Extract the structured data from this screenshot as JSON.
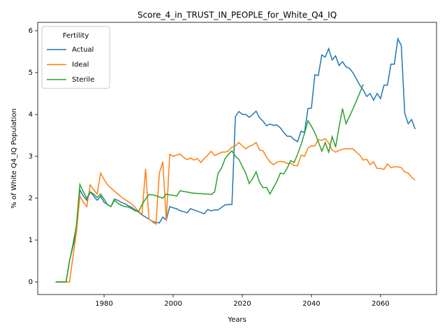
{
  "chart_data": {
    "type": "line",
    "title": "Score_4_in_TRUST_IN_PEOPLE_for_White_Q4_IQ",
    "x_label": "Years",
    "y_label": "% of White Q4_IQ Population",
    "legend_title": "Fertility",
    "legend_position": "upper left",
    "x": [
      1966,
      1967,
      1968,
      1969,
      1970,
      1971,
      1972,
      1973,
      1974,
      1975,
      1976,
      1977,
      1978,
      1979,
      1980,
      1981,
      1982,
      1983,
      1984,
      1985,
      1986,
      1987,
      1988,
      1989,
      1990,
      1991,
      1992,
      1993,
      1994,
      1995,
      1996,
      1997,
      1998,
      1999,
      2000,
      2001,
      2002,
      2003,
      2004,
      2005,
      2006,
      2007,
      2008,
      2009,
      2010,
      2011,
      2012,
      2013,
      2014,
      2015,
      2016,
      2017,
      2018,
      2019,
      2020,
      2021,
      2022,
      2023,
      2024,
      2025,
      2026,
      2027,
      2028,
      2029,
      2030,
      2031,
      2032,
      2033,
      2034,
      2035,
      2036,
      2037,
      2038,
      2039,
      2040,
      2041,
      2042,
      2043,
      2044,
      2045,
      2046,
      2047,
      2048,
      2049,
      2050,
      2051,
      2052,
      2053,
      2054,
      2055,
      2056,
      2057,
      2058,
      2059,
      2060,
      2061,
      2062,
      2063,
      2064,
      2065,
      2066,
      2067,
      2068,
      2069,
      2070
    ],
    "series": [
      {
        "name": "Actual",
        "color": "#1f77b4",
        "values": [
          0,
          0,
          0,
          0,
          0.5,
          0.85,
          1.2,
          2.2,
          2.05,
          1.95,
          2.15,
          2.05,
          1.95,
          2.05,
          1.9,
          1.85,
          1.8,
          1.98,
          1.95,
          1.9,
          1.87,
          1.82,
          1.78,
          1.72,
          1.67,
          1.6,
          1.55,
          1.5,
          1.45,
          1.42,
          1.41,
          1.55,
          1.48,
          1.8,
          1.77,
          1.75,
          1.7,
          1.68,
          1.65,
          1.75,
          1.72,
          1.69,
          1.66,
          1.63,
          1.73,
          1.7,
          1.72,
          1.72,
          1.78,
          1.84,
          1.85,
          1.85,
          3.95,
          4.07,
          4.0,
          4.0,
          3.93,
          4.0,
          4.08,
          3.92,
          3.84,
          3.73,
          3.77,
          3.74,
          3.75,
          3.68,
          3.57,
          3.48,
          3.48,
          3.4,
          3.35,
          3.6,
          3.57,
          4.14,
          4.15,
          4.95,
          4.93,
          5.42,
          5.37,
          5.57,
          5.3,
          5.4,
          5.17,
          5.26,
          5.14,
          5.1,
          5.0,
          4.85,
          4.7,
          4.58,
          4.43,
          4.5,
          4.34,
          4.5,
          4.38,
          4.7,
          4.7,
          5.2,
          5.2,
          5.81,
          5.65,
          4.03,
          3.78,
          3.88,
          3.65
        ]
      },
      {
        "name": "Ideal",
        "color": "#ff7f0e",
        "values": [
          0,
          0,
          0,
          0,
          0,
          0.6,
          1.2,
          2.05,
          1.9,
          1.8,
          2.32,
          2.2,
          2.1,
          2.6,
          2.45,
          2.32,
          2.24,
          2.17,
          2.1,
          2.03,
          1.97,
          1.92,
          1.86,
          1.78,
          1.68,
          1.62,
          2.7,
          1.5,
          1.44,
          1.38,
          2.6,
          2.87,
          1.47,
          3.05,
          3.0,
          3.03,
          3.05,
          2.98,
          2.92,
          2.96,
          2.91,
          2.95,
          2.85,
          2.95,
          3.03,
          3.12,
          3.02,
          3.06,
          3.1,
          3.1,
          3.13,
          3.22,
          3.25,
          3.33,
          3.25,
          3.18,
          3.24,
          3.27,
          3.33,
          3.15,
          3.13,
          2.98,
          2.87,
          2.8,
          2.86,
          2.88,
          2.87,
          2.83,
          2.83,
          2.78,
          2.78,
          3.03,
          3.0,
          3.2,
          3.25,
          3.25,
          3.4,
          3.38,
          3.42,
          3.32,
          3.15,
          3.1,
          3.14,
          3.17,
          3.18,
          3.18,
          3.18,
          3.1,
          3.03,
          2.91,
          2.93,
          2.8,
          2.87,
          2.71,
          2.71,
          2.69,
          2.82,
          2.73,
          2.75,
          2.75,
          2.73,
          2.63,
          2.6,
          2.5,
          2.43
        ]
      },
      {
        "name": "Sterile",
        "color": "#2ca02c",
        "values": [
          0,
          0,
          0,
          0,
          0.5,
          0.9,
          1.35,
          2.33,
          2.15,
          2.0,
          2.15,
          2.1,
          2.02,
          2.1,
          1.98,
          1.84,
          1.8,
          1.95,
          1.88,
          1.83,
          1.8,
          1.79,
          1.75,
          1.7,
          1.68,
          1.85,
          1.98,
          2.09,
          2.08,
          2.06,
          2.03,
          2.0,
          2.1,
          2.08,
          2.07,
          2.05,
          2.18,
          2.16,
          2.15,
          2.13,
          2.12,
          2.11,
          2.11,
          2.1,
          2.1,
          2.09,
          2.15,
          2.6,
          2.72,
          2.94,
          3.05,
          3.13,
          3.0,
          2.93,
          2.76,
          2.6,
          2.35,
          2.47,
          2.63,
          2.38,
          2.25,
          2.26,
          2.1,
          2.25,
          2.4,
          2.6,
          2.58,
          2.72,
          2.9,
          2.85,
          3.05,
          3.28,
          3.55,
          3.85,
          3.72,
          3.56,
          3.35,
          3.12,
          3.33,
          3.1,
          3.47,
          3.22,
          3.7,
          4.14,
          3.78,
          3.95,
          4.13,
          4.32,
          4.52,
          4.72,
          null,
          null,
          null,
          null,
          null,
          null,
          null,
          null,
          null,
          null,
          null,
          null,
          null,
          null,
          null
        ]
      }
    ],
    "xlim": [
      1960.8,
      2076.2
    ],
    "ylim": [
      -0.3,
      6.2
    ],
    "xticks": [
      1980,
      2000,
      2020,
      2040,
      2060
    ],
    "yticks": [
      0,
      1,
      2,
      3,
      4,
      5,
      6
    ]
  }
}
